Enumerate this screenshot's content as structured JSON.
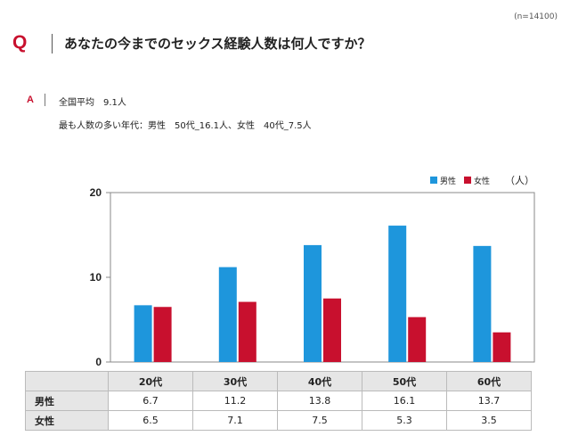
{
  "sample_size": "(n=14100)",
  "question": {
    "mark": "Q",
    "text": "あなたの今までのセックス経験人数は何人ですか？"
  },
  "answer": {
    "mark": "A",
    "line1": "全国平均　9.1人",
    "line2": "最も人数の多い年代：男性　50代_16.1人、女性　40代_7.5人"
  },
  "colors": {
    "male": "#1e96dc",
    "female": "#c8102e",
    "accent": "#c8102e"
  },
  "chart_data": {
    "type": "bar",
    "categories": [
      "20代",
      "30代",
      "40代",
      "50代",
      "60代"
    ],
    "series": [
      {
        "name": "男性",
        "values": [
          6.7,
          11.2,
          13.8,
          16.1,
          13.7
        ]
      },
      {
        "name": "女性",
        "values": [
          6.5,
          7.1,
          7.5,
          5.3,
          3.5
        ]
      }
    ],
    "unit": "（人）",
    "yticks": [
      "0",
      "10",
      "20"
    ],
    "ylim": [
      0,
      20
    ],
    "legend_position": "top-right",
    "grid": false
  },
  "table": {
    "headers": [
      "20代",
      "30代",
      "40代",
      "50代",
      "60代"
    ],
    "rows": [
      {
        "label": "男性",
        "cells": [
          "6.7",
          "11.2",
          "13.8",
          "16.1",
          "13.7"
        ]
      },
      {
        "label": "女性",
        "cells": [
          "6.5",
          "7.1",
          "7.5",
          "5.3",
          "3.5"
        ]
      }
    ]
  }
}
